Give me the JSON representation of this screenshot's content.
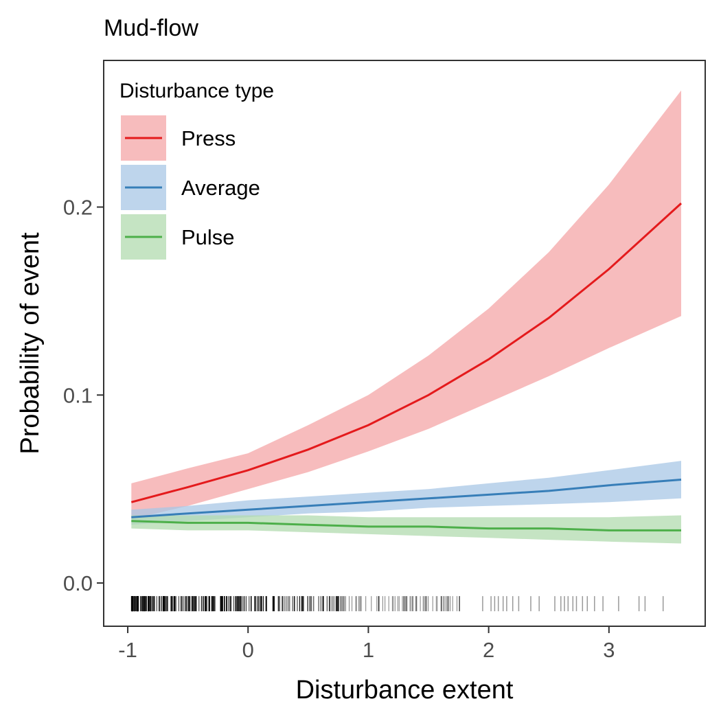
{
  "chart_data": {
    "type": "line",
    "title": "Mud-flow",
    "xlabel": "Disturbance extent",
    "ylabel": "Probability of event",
    "xlim": [
      -1.2,
      3.8
    ],
    "ylim": [
      -0.023,
      0.278
    ],
    "x_ticks": [
      -1,
      0,
      1,
      2,
      3
    ],
    "x_tick_labels": [
      "-1",
      "0",
      "1",
      "2",
      "3"
    ],
    "y_ticks": [
      0.0,
      0.1,
      0.2
    ],
    "y_tick_labels": [
      "0.0",
      "0.1",
      "0.2"
    ],
    "grid": false,
    "legend": {
      "title": "Disturbance type",
      "position": "top-left"
    },
    "x": [
      -0.97,
      -0.5,
      0.0,
      0.5,
      1.0,
      1.5,
      2.0,
      2.5,
      3.0,
      3.6
    ],
    "series": [
      {
        "name": "Press",
        "color": "#e41a1c",
        "fill": "#f4a6a7",
        "values": [
          0.043,
          0.051,
          0.06,
          0.071,
          0.084,
          0.1,
          0.119,
          0.141,
          0.167,
          0.202
        ],
        "lower": [
          0.034,
          0.041,
          0.05,
          0.059,
          0.07,
          0.082,
          0.096,
          0.11,
          0.125,
          0.142
        ],
        "upper": [
          0.053,
          0.061,
          0.069,
          0.084,
          0.1,
          0.121,
          0.146,
          0.176,
          0.212,
          0.262
        ]
      },
      {
        "name": "Average",
        "color": "#377eb8",
        "fill": "#a8c7e6",
        "values": [
          0.035,
          0.037,
          0.039,
          0.041,
          0.043,
          0.045,
          0.047,
          0.049,
          0.052,
          0.055
        ],
        "lower": [
          0.031,
          0.033,
          0.035,
          0.037,
          0.038,
          0.04,
          0.041,
          0.042,
          0.043,
          0.045
        ],
        "upper": [
          0.039,
          0.041,
          0.044,
          0.046,
          0.048,
          0.05,
          0.053,
          0.056,
          0.06,
          0.065
        ]
      },
      {
        "name": "Pulse",
        "color": "#4daf4a",
        "fill": "#b2dbaf",
        "values": [
          0.033,
          0.032,
          0.032,
          0.031,
          0.03,
          0.03,
          0.029,
          0.029,
          0.028,
          0.028
        ],
        "lower": [
          0.029,
          0.028,
          0.028,
          0.027,
          0.026,
          0.025,
          0.024,
          0.023,
          0.022,
          0.021
        ],
        "upper": [
          0.036,
          0.036,
          0.036,
          0.036,
          0.035,
          0.035,
          0.035,
          0.035,
          0.035,
          0.036
        ]
      }
    ],
    "rug": {
      "y": -0.011,
      "dense_range": [
        -0.97,
        1.8
      ],
      "sparse_x": [
        1.95,
        2.02,
        2.05,
        2.08,
        2.12,
        2.15,
        2.2,
        2.25,
        2.35,
        2.42,
        2.55,
        2.6,
        2.63,
        2.66,
        2.7,
        2.73,
        2.78,
        2.82,
        2.88,
        2.95,
        3.08,
        3.25,
        3.3,
        3.45
      ]
    }
  }
}
